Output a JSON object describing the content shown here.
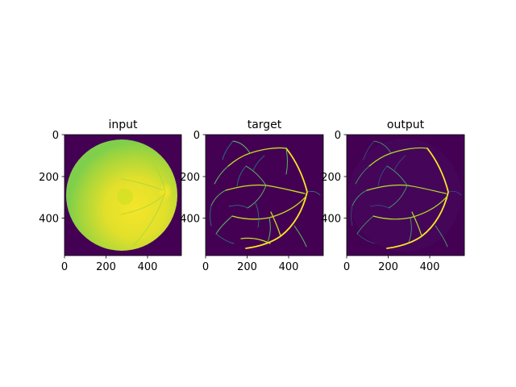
{
  "figure": {
    "background": "#ffffff",
    "colormap": "viridis",
    "colors": {
      "dark": "#440154",
      "navy": "#3b528b",
      "teal": "#21918c",
      "green": "#5ec962",
      "yellow": "#fde725",
      "lime": "#c8e020"
    },
    "panels": [
      {
        "title": "input",
        "x_ticks": [
          "0",
          "200",
          "400"
        ],
        "y_ticks": [
          "0",
          "200",
          "400"
        ]
      },
      {
        "title": "target",
        "x_ticks": [
          "0",
          "200",
          "400"
        ],
        "y_ticks": [
          "0",
          "200",
          "400"
        ]
      },
      {
        "title": "output",
        "x_ticks": [
          "0",
          "200",
          "400"
        ],
        "y_ticks": [
          "0",
          "200",
          "400"
        ]
      }
    ]
  }
}
